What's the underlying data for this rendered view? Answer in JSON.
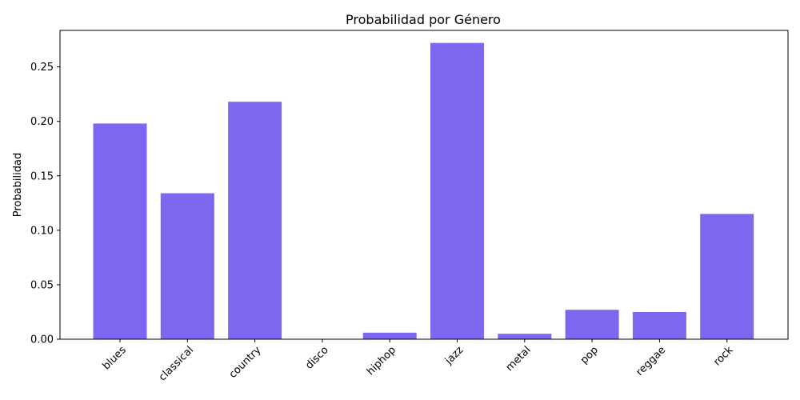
{
  "chart_data": {
    "type": "bar",
    "title": "Probabilidad por Género",
    "xlabel": "",
    "ylabel": "Probabilidad",
    "categories": [
      "blues",
      "classical",
      "country",
      "disco",
      "hiphop",
      "jazz",
      "metal",
      "pop",
      "reggae",
      "rock"
    ],
    "values": [
      0.198,
      0.134,
      0.218,
      0.0003,
      0.006,
      0.272,
      0.005,
      0.027,
      0.025,
      0.115
    ],
    "ylim": [
      0,
      0.2835
    ],
    "yticks": [
      "0.00",
      "0.05",
      "0.10",
      "0.15",
      "0.20",
      "0.25"
    ],
    "bar_color": "#7b68ee",
    "grid": false
  }
}
